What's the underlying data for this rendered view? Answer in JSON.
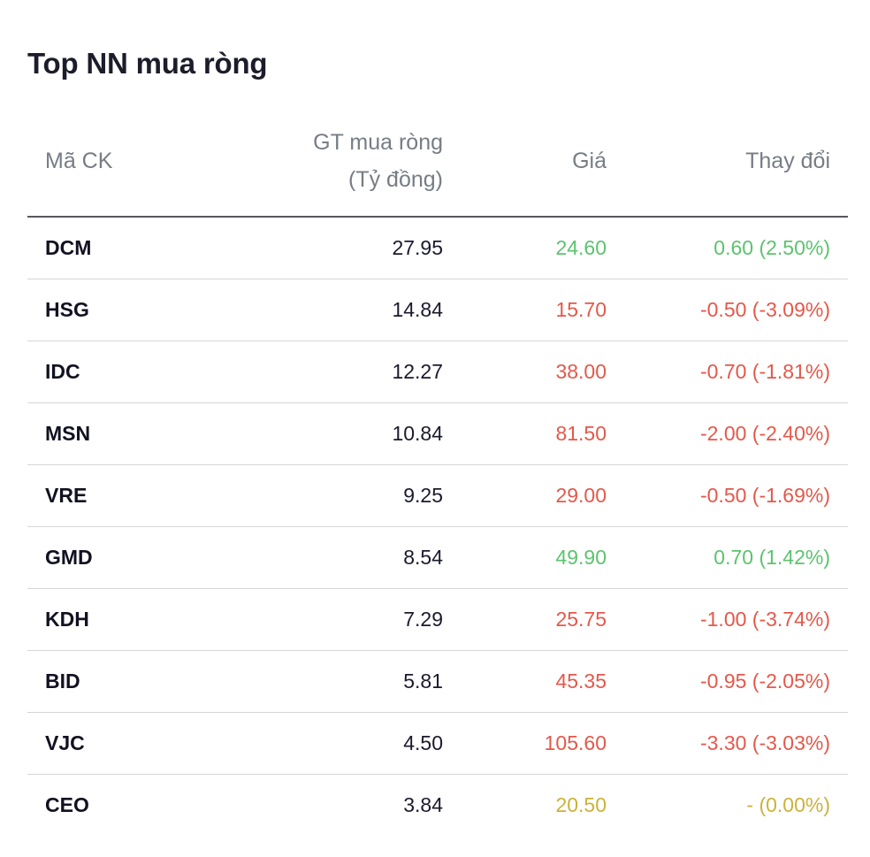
{
  "page": {
    "title": "Top NN mua ròng"
  },
  "table": {
    "headers": {
      "symbol": "Mã CK",
      "net_value_line1": "GT mua ròng",
      "net_value_line2": "(Tỷ đồng)",
      "price": "Giá",
      "change": "Thay đổi"
    },
    "rows": [
      {
        "symbol": "DCM",
        "net_value": "27.95",
        "price": "24.60",
        "change": "0.60 (2.50%)",
        "trend": "up"
      },
      {
        "symbol": "HSG",
        "net_value": "14.84",
        "price": "15.70",
        "change": "-0.50 (-3.09%)",
        "trend": "down"
      },
      {
        "symbol": "IDC",
        "net_value": "12.27",
        "price": "38.00",
        "change": "-0.70 (-1.81%)",
        "trend": "down"
      },
      {
        "symbol": "MSN",
        "net_value": "10.84",
        "price": "81.50",
        "change": "-2.00 (-2.40%)",
        "trend": "down"
      },
      {
        "symbol": "VRE",
        "net_value": "9.25",
        "price": "29.00",
        "change": "-0.50 (-1.69%)",
        "trend": "down"
      },
      {
        "symbol": "GMD",
        "net_value": "8.54",
        "price": "49.90",
        "change": "0.70 (1.42%)",
        "trend": "up"
      },
      {
        "symbol": "KDH",
        "net_value": "7.29",
        "price": "25.75",
        "change": "-1.00 (-3.74%)",
        "trend": "down"
      },
      {
        "symbol": "BID",
        "net_value": "5.81",
        "price": "45.35",
        "change": "-0.95 (-2.05%)",
        "trend": "down"
      },
      {
        "symbol": "VJC",
        "net_value": "4.50",
        "price": "105.60",
        "change": "-3.30 (-3.03%)",
        "trend": "down"
      },
      {
        "symbol": "CEO",
        "net_value": "3.84",
        "price": "20.50",
        "change": "- (0.00%)",
        "trend": "flat"
      }
    ]
  },
  "colors": {
    "up": "#5cc36e",
    "down": "#e4584a",
    "flat": "#cbb23a",
    "header_text": "#777c85",
    "title_text": "#1c1c2b"
  }
}
